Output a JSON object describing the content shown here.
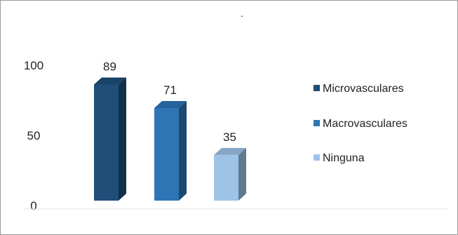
{
  "chart_data": {
    "type": "bar",
    "title": ".",
    "categories": [
      "Microvasculares",
      "Macrovasculares",
      "Ninguna"
    ],
    "values": [
      89,
      71,
      35
    ],
    "colors": [
      "#1f4e79",
      "#2e75b6",
      "#9dc3e6"
    ],
    "yticks": [
      "0",
      "50",
      "100"
    ],
    "ylim": [
      0,
      100
    ],
    "grid": false,
    "legend_position": "right",
    "legend": [
      "Microvasculares",
      "Macrovasculares",
      "Ninguna"
    ],
    "style": "3d-column"
  }
}
